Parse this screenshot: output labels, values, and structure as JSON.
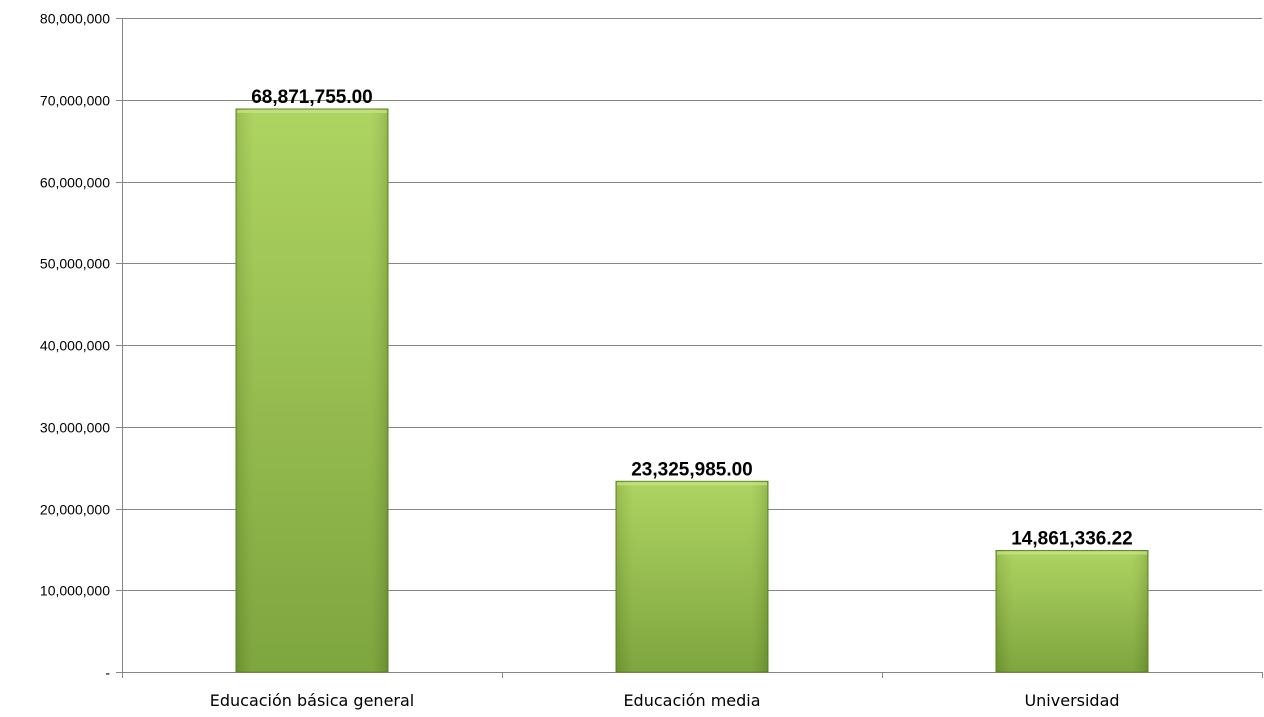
{
  "chart_data": {
    "type": "bar",
    "categories": [
      "Educación básica general",
      "Educación media",
      "Universidad"
    ],
    "values": [
      68871755.0,
      23325985.0,
      14861336.22
    ],
    "data_labels": [
      "68,871,755.00",
      "23,325,985.00",
      "14,861,336.22"
    ],
    "ylim": [
      0,
      80000000
    ],
    "yticks": [
      0,
      10000000,
      20000000,
      30000000,
      40000000,
      50000000,
      60000000,
      70000000,
      80000000
    ],
    "ytick_labels": [
      "-",
      "10,000,000",
      "20,000,000",
      "30,000,000",
      "40,000,000",
      "50,000,000",
      "60,000,000",
      "70,000,000",
      "80,000,000"
    ],
    "grid": "horizontal",
    "legend": "none",
    "colors": {
      "bar_light": "#a9d158",
      "bar_dark": "#76a033",
      "bar_edge": "#5e8a23",
      "grid": "#868686",
      "axis": "#868686"
    }
  }
}
